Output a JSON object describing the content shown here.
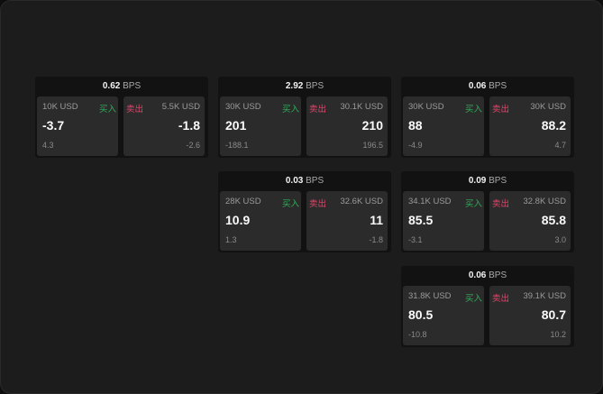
{
  "unit": "BPS",
  "buy_label": "买入",
  "sell_label": "卖出",
  "colors": {
    "buy": "#2fae5a",
    "sell": "#e0456a",
    "background": "#1c1c1c"
  },
  "cards": [
    {
      "spread": "0.62",
      "buy": {
        "amount": "10K USD",
        "price": "-3.7",
        "change": "4.3"
      },
      "sell": {
        "amount": "5.5K USD",
        "price": "-1.8",
        "change": "-2.6"
      }
    },
    {
      "spread": "2.92",
      "buy": {
        "amount": "30K USD",
        "price": "201",
        "change": "-188.1"
      },
      "sell": {
        "amount": "30.1K USD",
        "price": "210",
        "change": "196.5"
      }
    },
    {
      "spread": "0.06",
      "buy": {
        "amount": "30K USD",
        "price": "88",
        "change": "-4.9"
      },
      "sell": {
        "amount": "30K USD",
        "price": "88.2",
        "change": "4.7"
      }
    },
    {
      "spread": "0.03",
      "buy": {
        "amount": "28K USD",
        "price": "10.9",
        "change": "1.3"
      },
      "sell": {
        "amount": "32.6K USD",
        "price": "11",
        "change": "-1.8"
      }
    },
    {
      "spread": "0.09",
      "buy": {
        "amount": "34.1K USD",
        "price": "85.5",
        "change": "-3.1"
      },
      "sell": {
        "amount": "32.8K USD",
        "price": "85.8",
        "change": "3.0"
      }
    },
    {
      "spread": "0.06",
      "buy": {
        "amount": "31.8K USD",
        "price": "80.5",
        "change": "-10.8"
      },
      "sell": {
        "amount": "39.1K USD",
        "price": "80.7",
        "change": "10.2"
      }
    }
  ]
}
